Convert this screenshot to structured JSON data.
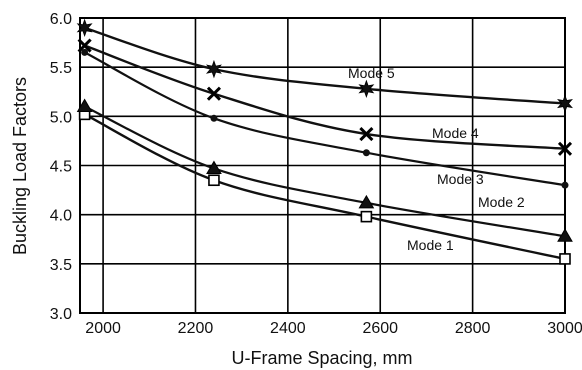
{
  "chart_data": {
    "type": "line",
    "title": "",
    "xlabel": "U-Frame Spacing, mm",
    "ylabel": "Buckling Load Factors",
    "xlim": [
      1950,
      3000
    ],
    "ylim": [
      3.0,
      6.0
    ],
    "x_ticks": [
      "2000",
      "2200",
      "2400",
      "2600",
      "2800",
      "3000"
    ],
    "y_ticks": [
      "3.0",
      "3.5",
      "4.0",
      "4.5",
      "5.0",
      "5.5",
      "6.0"
    ],
    "grid": true,
    "legend": "none",
    "x": [
      1960,
      2240,
      2570,
      3000
    ],
    "series": [
      {
        "name": "Mode 1",
        "marker": "square",
        "values": [
          5.02,
          4.35,
          3.98,
          3.55
        ]
      },
      {
        "name": "Mode 2",
        "marker": "triangle",
        "values": [
          5.1,
          4.47,
          4.12,
          3.78
        ]
      },
      {
        "name": "Mode 3",
        "marker": "circle",
        "values": [
          5.65,
          4.98,
          4.63,
          4.3
        ]
      },
      {
        "name": "Mode 4",
        "marker": "x",
        "values": [
          5.72,
          5.23,
          4.82,
          4.67
        ]
      },
      {
        "name": "Mode 5",
        "marker": "star",
        "values": [
          5.9,
          5.48,
          5.28,
          5.13
        ]
      }
    ]
  }
}
